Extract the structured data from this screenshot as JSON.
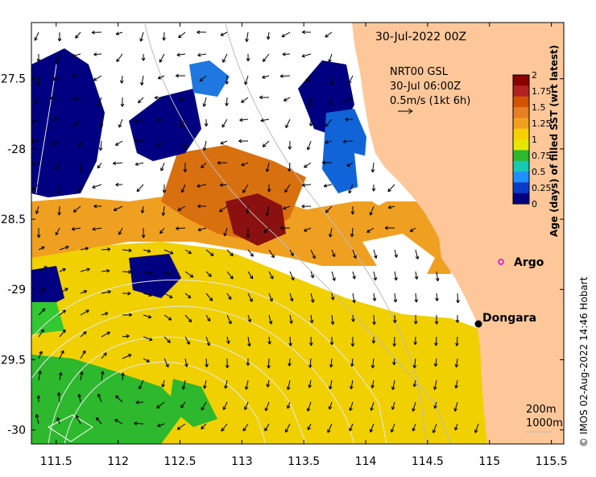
{
  "title_time": "30-Jul-2022 00Z",
  "current_info": {
    "line1": "NRT00 GSL",
    "line2": "30-Jul 06:00Z",
    "line3": "0.5m/s (1kt 6h)"
  },
  "colorbar": {
    "label": "Age (days) of filled SST (wrt latest)",
    "ticks": [
      "2",
      "1.75",
      "1.5",
      "1.25",
      "1",
      "0.75",
      "0.5",
      "0.25",
      "0"
    ],
    "colors": [
      "#8b0000",
      "#b22222",
      "#d35400",
      "#e67e22",
      "#f0a020",
      "#f5d000",
      "#e6e600",
      "#2db82d",
      "#18c8b0",
      "#1e90ff",
      "#0a3cc8",
      "#000080"
    ]
  },
  "places": {
    "argo": "Argo",
    "dongara": "Dongara"
  },
  "isobaths": {
    "a": "200m",
    "b": "1000m"
  },
  "copyright": "© IMOS 02-Aug-2022 14:46 Hobart",
  "x_ticks": [
    "111.5",
    "112",
    "112.5",
    "113",
    "113.5",
    "114",
    "114.5",
    "115",
    "115.5"
  ],
  "y_ticks": [
    "-27.5",
    "-28",
    "-28.5",
    "-29",
    "-29.5",
    "-30"
  ],
  "map": {
    "lon_range": [
      111.3,
      115.6
    ],
    "lat_range": [
      -30.1,
      -27.1
    ],
    "land_color": "#fdc79a"
  }
}
